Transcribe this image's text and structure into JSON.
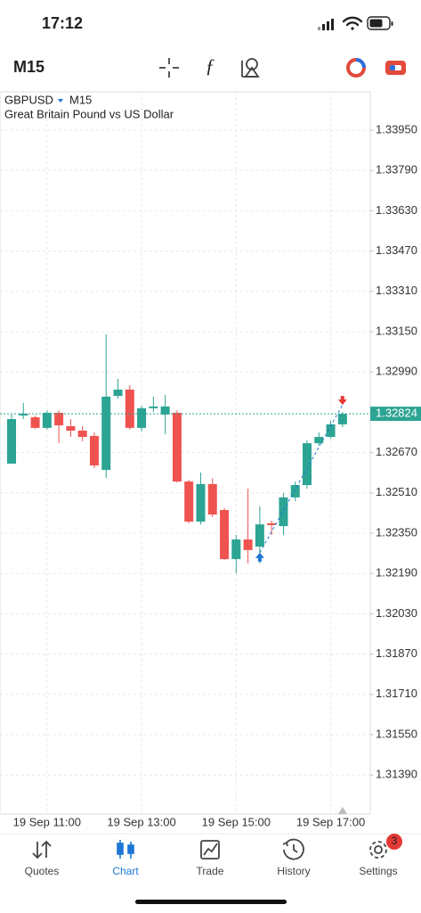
{
  "status_bar": {
    "time": "17:12"
  },
  "toolbar": {
    "timeframe": "M15"
  },
  "chart_data": {
    "type": "candlestick",
    "symbol": "GBPUSD",
    "timeframe": "M15",
    "subtitle": "Great Britain Pound vs US Dollar",
    "categories": [
      null,
      null,
      null,
      "19 Sep 11:00",
      null,
      null,
      null,
      null,
      null,
      null,
      null,
      "19 Sep 13:00",
      null,
      null,
      null,
      null,
      null,
      null,
      null,
      "19 Sep 15:00",
      null,
      null,
      null,
      null,
      null,
      null,
      null,
      "19 Sep 17:00",
      null
    ],
    "open": [
      1.32626,
      1.32817,
      1.3281,
      1.32768,
      1.32828,
      1.32775,
      1.32757,
      1.32736,
      1.32601,
      1.32895,
      1.3292,
      1.32768,
      1.32846,
      1.32821,
      1.32828,
      1.32555,
      1.32396,
      1.32545,
      1.32442,
      1.32247,
      1.32325,
      1.32297,
      1.32389,
      1.32378,
      1.32492,
      1.32541,
      1.32707,
      1.32732,
      1.32782
    ],
    "high": [
      1.32821,
      1.32867,
      1.32817,
      1.32838,
      1.32838,
      1.32803,
      1.32775,
      1.3275,
      1.33139,
      1.32962,
      1.32938,
      1.32856,
      1.32892,
      1.32899,
      1.32838,
      1.32562,
      1.32591,
      1.32569,
      1.32449,
      1.32343,
      1.32527,
      1.32456,
      1.32399,
      1.32509,
      1.32555,
      1.32718,
      1.3275,
      1.32796,
      1.32831
    ],
    "low": [
      1.32626,
      1.32803,
      1.32764,
      1.32761,
      1.32707,
      1.32732,
      1.32715,
      1.32608,
      1.32569,
      1.32884,
      1.32761,
      1.32754,
      1.32831,
      1.32743,
      1.32552,
      1.32389,
      1.32385,
      1.32414,
      1.32244,
      1.32191,
      1.3223,
      1.3223,
      1.32343,
      1.32343,
      1.32477,
      1.32527,
      1.32697,
      1.32725,
      1.32771
    ],
    "close": [
      1.32803,
      1.32824,
      1.32768,
      1.32828,
      1.32778,
      1.32757,
      1.32732,
      1.32619,
      1.32892,
      1.3292,
      1.32768,
      1.32846,
      1.32853,
      1.32853,
      1.32555,
      1.32396,
      1.32545,
      1.32424,
      1.32247,
      1.32325,
      1.32283,
      1.32385,
      1.32382,
      1.32492,
      1.32541,
      1.32707,
      1.32732,
      1.32782,
      1.32824
    ],
    "up_color": "#2ca493",
    "down_color": "#ef5350",
    "ylim": [
      1.31235,
      1.34095
    ],
    "yticks": [
      {
        "value": 1.3395,
        "label": "1.33950"
      },
      {
        "value": 1.3379,
        "label": "1.33790"
      },
      {
        "value": 1.3363,
        "label": "1.33630"
      },
      {
        "value": 1.3347,
        "label": "1.33470"
      },
      {
        "value": 1.3331,
        "label": "1.33310"
      },
      {
        "value": 1.3315,
        "label": "1.33150"
      },
      {
        "value": 1.3299,
        "label": "1.32990"
      },
      {
        "value": 1.3267,
        "label": "1.32670"
      },
      {
        "value": 1.3251,
        "label": "1.32510"
      },
      {
        "value": 1.3235,
        "label": "1.32350"
      },
      {
        "value": 1.3219,
        "label": "1.32190"
      },
      {
        "value": 1.3203,
        "label": "1.32030"
      },
      {
        "value": 1.3187,
        "label": "1.31870"
      },
      {
        "value": 1.3171,
        "label": "1.31710"
      },
      {
        "value": 1.3155,
        "label": "1.31550"
      },
      {
        "value": 1.3139,
        "label": "1.31390"
      }
    ],
    "current_price": 1.32824,
    "grid": true
  },
  "tab_bar": {
    "tabs": [
      {
        "label": "Quotes"
      },
      {
        "label": "Chart"
      },
      {
        "label": "Trade"
      },
      {
        "label": "History"
      },
      {
        "label": "Settings"
      }
    ],
    "active": 1,
    "badge": "3"
  }
}
